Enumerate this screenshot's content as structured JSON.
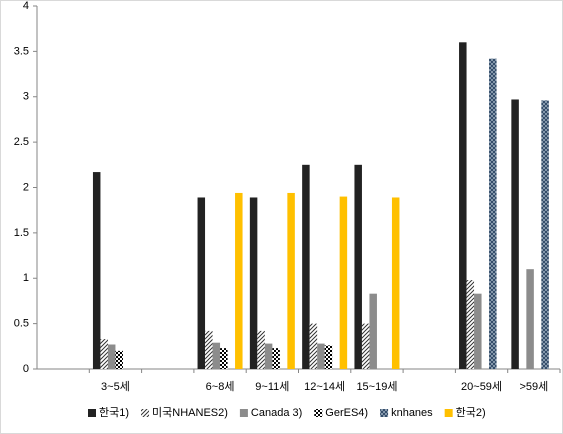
{
  "chart_data": {
    "type": "bar",
    "categories": [
      null,
      "3~5세",
      null,
      "6~8세",
      "9~11세",
      "12~14세",
      "15~19세",
      null,
      "20~59세",
      ">59세"
    ],
    "series": [
      {
        "name": "한국1)",
        "color": "#222222",
        "pattern": "solid",
        "values": [
          null,
          2.17,
          null,
          1.89,
          1.89,
          2.25,
          2.25,
          null,
          3.6,
          2.97
        ]
      },
      {
        "name": "미국NHANES2)",
        "color": "#333333",
        "pattern": "hatch",
        "values": [
          null,
          0.33,
          null,
          0.42,
          0.42,
          0.5,
          0.5,
          null,
          0.98,
          null
        ]
      },
      {
        "name": "Canada 3)",
        "color": "#8c8c8c",
        "pattern": "solid",
        "values": [
          null,
          0.27,
          null,
          0.29,
          0.28,
          0.28,
          0.83,
          null,
          0.83,
          1.1
        ]
      },
      {
        "name": "GerES4)",
        "color": "#000000",
        "pattern": "checker",
        "values": [
          null,
          0.2,
          null,
          0.23,
          0.23,
          0.26,
          null,
          null,
          null,
          null
        ]
      },
      {
        "name": "knhanes",
        "color": "#1f3a5a",
        "pattern": "cross",
        "values": [
          null,
          null,
          null,
          null,
          null,
          null,
          null,
          null,
          3.42,
          2.96
        ]
      },
      {
        "name": "한국2)",
        "color": "#ffc000",
        "pattern": "solid",
        "values": [
          null,
          null,
          null,
          1.94,
          1.94,
          1.9,
          1.89,
          null,
          null,
          null
        ]
      }
    ],
    "ylim": [
      0,
      4
    ],
    "yticks": [
      0,
      0.5,
      1,
      1.5,
      2,
      2.5,
      3,
      3.5,
      4
    ],
    "legend": "bottom"
  }
}
